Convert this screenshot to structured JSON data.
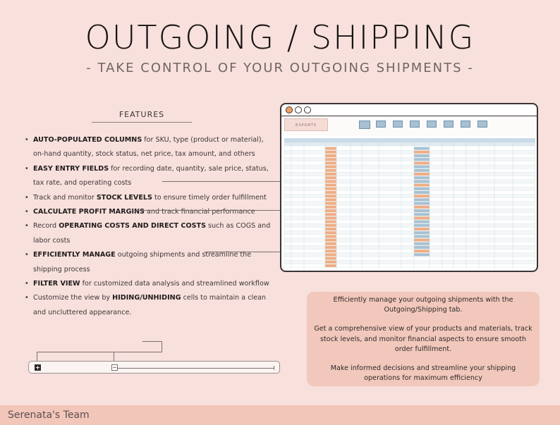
{
  "header": {
    "title": "OUTGOING / SHIPPING",
    "subtitle": "- TAKE CONTROL OF YOUR OUTGOING SHIPMENTS -"
  },
  "features": {
    "heading": "FEATURES",
    "items": [
      {
        "bold": "AUTO-POPULATED COLUMNS",
        "text": " for SKU, type (product or material), on-hand quantity, stock status, net price, tax amount, and others"
      },
      {
        "bold": "EASY ENTRY FIELDS",
        "text": " for recording date, quantity, sale price, status, tax rate, and operating costs"
      },
      {
        "pre": "Track and monitor ",
        "bold": "STOCK LEVELS",
        "text": " to ensure timely order fulfillment"
      },
      {
        "bold": "CALCULATE PROFIT MARGINS",
        "text": " and track financial performance"
      },
      {
        "pre": "Record ",
        "bold": "OPERATING COSTS AND DIRECT COSTS",
        "text": " such as COGS and labor costs"
      },
      {
        "bold": "EFFICIENTLY MANAGE",
        "text": " outgoing shipments and streamline the shipping process"
      },
      {
        "bold": "FILTER VIEW",
        "text": " for customized data analysis and streamlined workflow"
      },
      {
        "pre": "Customize the view by ",
        "bold": "HIDING/UNHIDING",
        "text": " cells to maintain a clean and uncluttered appearance."
      }
    ]
  },
  "filter_bar": {
    "expand_label": "+",
    "collapse_label": "−"
  },
  "spreadsheet": {
    "sheet_title": "EXPORTS",
    "window_buttons": [
      "close-dot",
      "minimize-dot",
      "maximize-dot"
    ]
  },
  "info_box": {
    "paragraphs": [
      "Efficiently manage your outgoing shipments with the Outgoing/Shipping tab.",
      "Get a comprehensive view of your products and materials, track stock levels, and monitor financial aspects to ensure smooth order fulfillment.",
      "Make informed decisions and streamline your shipping operations for maximum efficiency"
    ]
  },
  "footer": {
    "brand": "Serenata's Team"
  },
  "colors": {
    "background": "#f8e0dc",
    "accent_box": "#f2c8bc",
    "footer": "#f3c6ba",
    "orange_cell": "#efad85",
    "blue_cell": "#a7c1d2"
  }
}
